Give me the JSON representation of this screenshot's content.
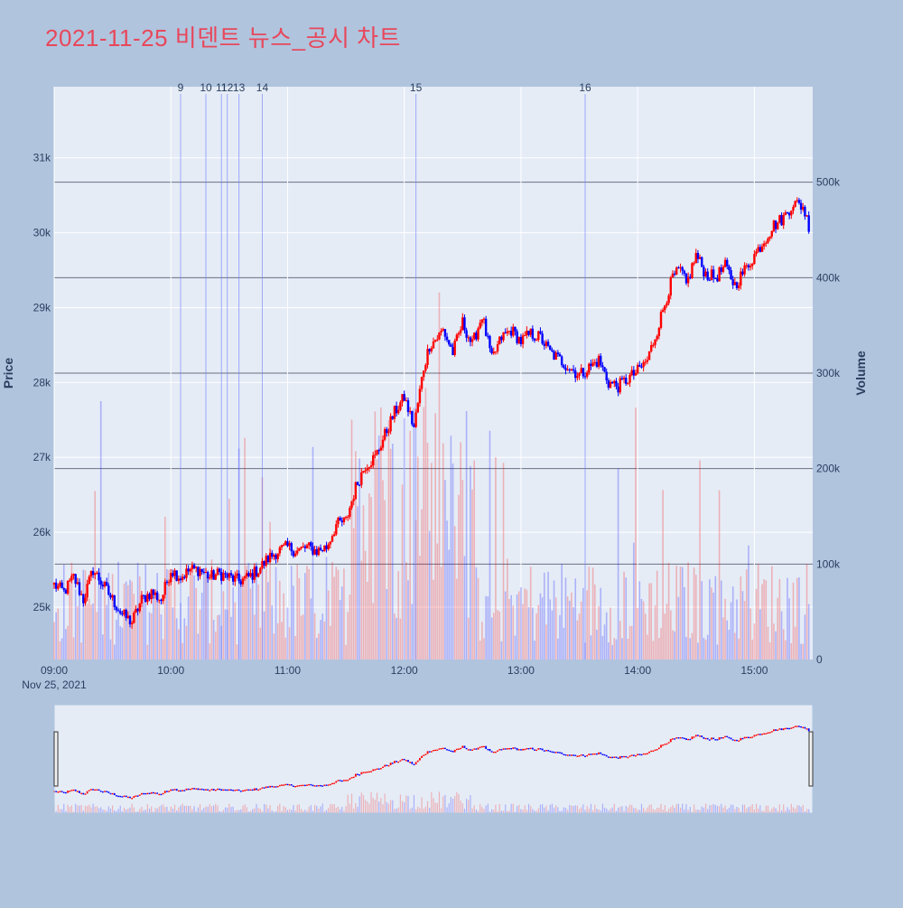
{
  "title": "2021-11-25 비덴트 뉴스_공시 차트",
  "chart_data": {
    "type": "candlestick",
    "title": "2021-11-25 비덴트 뉴스_공시 차트",
    "y_price_label": "Price",
    "y_volume_label": "Volume",
    "x_tick_labels": [
      "09:00",
      "10:00",
      "11:00",
      "12:00",
      "13:00",
      "14:00",
      "15:00"
    ],
    "x_date_label": "Nov 25, 2021",
    "x_range_minutes": [
      0,
      390
    ],
    "price_ticks": [
      "25k",
      "26k",
      "27k",
      "28k",
      "29k",
      "30k",
      "31k"
    ],
    "price_tick_values": [
      25000,
      26000,
      27000,
      28000,
      29000,
      30000,
      31000
    ],
    "price_range": [
      24300,
      31950
    ],
    "volume_ticks": [
      "0",
      "100k",
      "200k",
      "300k",
      "400k",
      "500k"
    ],
    "volume_tick_values": [
      0,
      100000,
      200000,
      300000,
      400000,
      500000
    ],
    "volume_range": [
      0,
      600000
    ],
    "up_color": "#ff0000",
    "down_color": "#0000ff",
    "price_path": [
      [
        0,
        25300
      ],
      [
        5,
        25200
      ],
      [
        10,
        25400
      ],
      [
        15,
        25100
      ],
      [
        20,
        25500
      ],
      [
        25,
        25300
      ],
      [
        30,
        25100
      ],
      [
        35,
        24900
      ],
      [
        40,
        24800
      ],
      [
        45,
        25100
      ],
      [
        50,
        25200
      ],
      [
        55,
        25100
      ],
      [
        60,
        25500
      ],
      [
        65,
        25400
      ],
      [
        70,
        25500
      ],
      [
        75,
        25500
      ],
      [
        80,
        25400
      ],
      [
        85,
        25450
      ],
      [
        90,
        25400
      ],
      [
        95,
        25350
      ],
      [
        100,
        25400
      ],
      [
        105,
        25500
      ],
      [
        110,
        25650
      ],
      [
        115,
        25750
      ],
      [
        120,
        25800
      ],
      [
        125,
        25750
      ],
      [
        130,
        25800
      ],
      [
        135,
        25750
      ],
      [
        140,
        25800
      ],
      [
        145,
        26100
      ],
      [
        150,
        26150
      ],
      [
        155,
        26600
      ],
      [
        160,
        26900
      ],
      [
        165,
        27000
      ],
      [
        170,
        27300
      ],
      [
        175,
        27600
      ],
      [
        180,
        27800
      ],
      [
        185,
        27400
      ],
      [
        190,
        28200
      ],
      [
        193,
        28500
      ],
      [
        197,
        28600
      ],
      [
        200,
        28700
      ],
      [
        205,
        28400
      ],
      [
        210,
        28800
      ],
      [
        215,
        28500
      ],
      [
        220,
        28900
      ],
      [
        225,
        28300
      ],
      [
        230,
        28600
      ],
      [
        235,
        28700
      ],
      [
        240,
        28550
      ],
      [
        245,
        28650
      ],
      [
        250,
        28600
      ],
      [
        255,
        28400
      ],
      [
        260,
        28300
      ],
      [
        265,
        28200
      ],
      [
        270,
        28100
      ],
      [
        275,
        28200
      ],
      [
        280,
        28300
      ],
      [
        285,
        28000
      ],
      [
        290,
        27950
      ],
      [
        295,
        28050
      ],
      [
        300,
        28150
      ],
      [
        305,
        28300
      ],
      [
        310,
        28700
      ],
      [
        315,
        29150
      ],
      [
        318,
        29400
      ],
      [
        322,
        29500
      ],
      [
        325,
        29300
      ],
      [
        330,
        29700
      ],
      [
        335,
        29450
      ],
      [
        340,
        29400
      ],
      [
        345,
        29550
      ],
      [
        350,
        29300
      ],
      [
        355,
        29500
      ],
      [
        360,
        29700
      ],
      [
        365,
        29900
      ],
      [
        370,
        30100
      ],
      [
        375,
        30200
      ],
      [
        380,
        30400
      ],
      [
        385,
        30350
      ],
      [
        388,
        30100
      ]
    ],
    "news_markers": [
      {
        "label": "9",
        "x": 65
      },
      {
        "label": "10",
        "x": 78
      },
      {
        "label": "11",
        "x": 86
      },
      {
        "label": "12",
        "x": 89
      },
      {
        "label": "13",
        "x": 95
      },
      {
        "label": "14",
        "x": 107
      },
      {
        "label": "15",
        "x": 186
      },
      {
        "label": "16",
        "x": 273
      }
    ]
  }
}
